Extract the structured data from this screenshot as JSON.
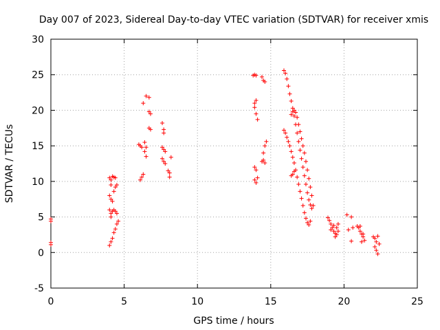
{
  "chart_data": {
    "type": "scatter",
    "title": "Day 007 of 2023, Sidereal Day-to-day VTEC variation (SDTVAR) for receiver xmis",
    "xlabel": "GPS time / hours",
    "ylabel": "SDTVAR / TECUs",
    "xlim": [
      0,
      25
    ],
    "ylim": [
      -5,
      30
    ],
    "xticks": [
      0,
      5,
      10,
      15,
      20,
      25
    ],
    "yticks": [
      -5,
      0,
      5,
      10,
      15,
      20,
      25,
      30
    ],
    "grid": true,
    "marker": "+",
    "color": "#ff0000",
    "series": [
      {
        "name": "SDTVAR",
        "points": [
          [
            0.0,
            4.7
          ],
          [
            0.0,
            4.4
          ],
          [
            0.0,
            1.4
          ],
          [
            0.0,
            1.1
          ],
          [
            4.0,
            10.5
          ],
          [
            4.1,
            10.2
          ],
          [
            4.1,
            9.5
          ],
          [
            4.2,
            10.7
          ],
          [
            4.3,
            10.6
          ],
          [
            4.4,
            10.5
          ],
          [
            4.0,
            8.0
          ],
          [
            4.1,
            7.5
          ],
          [
            4.2,
            7.2
          ],
          [
            4.3,
            8.6
          ],
          [
            4.4,
            9.2
          ],
          [
            4.5,
            9.5
          ],
          [
            4.0,
            6.0
          ],
          [
            4.1,
            5.5
          ],
          [
            4.1,
            5.0
          ],
          [
            4.2,
            5.8
          ],
          [
            4.3,
            6.0
          ],
          [
            4.4,
            5.8
          ],
          [
            4.5,
            5.5
          ],
          [
            4.0,
            1.0
          ],
          [
            4.1,
            1.5
          ],
          [
            4.2,
            2.0
          ],
          [
            4.3,
            2.8
          ],
          [
            4.4,
            3.3
          ],
          [
            4.5,
            4.0
          ],
          [
            4.6,
            4.4
          ],
          [
            6.0,
            15.2
          ],
          [
            6.1,
            15.0
          ],
          [
            6.2,
            14.8
          ],
          [
            6.4,
            15.5
          ],
          [
            6.5,
            14.8
          ],
          [
            6.1,
            10.2
          ],
          [
            6.2,
            10.6
          ],
          [
            6.3,
            11.0
          ],
          [
            6.3,
            21.0
          ],
          [
            6.5,
            22.0
          ],
          [
            6.7,
            21.8
          ],
          [
            6.7,
            19.8
          ],
          [
            6.8,
            19.5
          ],
          [
            6.7,
            17.5
          ],
          [
            6.8,
            17.3
          ],
          [
            6.5,
            13.5
          ],
          [
            6.4,
            14.2
          ],
          [
            7.6,
            18.2
          ],
          [
            7.7,
            17.3
          ],
          [
            7.7,
            16.8
          ],
          [
            7.6,
            14.8
          ],
          [
            7.7,
            14.5
          ],
          [
            7.8,
            14.2
          ],
          [
            7.6,
            13.2
          ],
          [
            7.7,
            12.8
          ],
          [
            7.8,
            12.5
          ],
          [
            8.0,
            11.5
          ],
          [
            8.1,
            11.2
          ],
          [
            8.1,
            10.6
          ],
          [
            8.2,
            13.4
          ],
          [
            13.8,
            24.9
          ],
          [
            13.9,
            25.0
          ],
          [
            14.0,
            24.9
          ],
          [
            14.4,
            24.7
          ],
          [
            14.5,
            24.2
          ],
          [
            14.6,
            24.0
          ],
          [
            13.9,
            21.0
          ],
          [
            14.0,
            21.4
          ],
          [
            13.9,
            20.4
          ],
          [
            14.0,
            19.5
          ],
          [
            14.1,
            18.7
          ],
          [
            13.9,
            12.0
          ],
          [
            14.0,
            11.6
          ],
          [
            13.9,
            10.2
          ],
          [
            14.0,
            9.8
          ],
          [
            14.1,
            10.5
          ],
          [
            14.4,
            12.8
          ],
          [
            14.5,
            13.0
          ],
          [
            14.6,
            12.6
          ],
          [
            14.5,
            14.0
          ],
          [
            14.6,
            15.0
          ],
          [
            14.7,
            15.6
          ],
          [
            15.9,
            25.6
          ],
          [
            16.0,
            25.2
          ],
          [
            16.1,
            24.4
          ],
          [
            16.2,
            23.4
          ],
          [
            16.3,
            22.3
          ],
          [
            16.4,
            21.3
          ],
          [
            16.5,
            20.3
          ],
          [
            16.6,
            19.2
          ],
          [
            16.7,
            18.0
          ],
          [
            16.8,
            16.8
          ],
          [
            16.9,
            15.6
          ],
          [
            17.0,
            14.4
          ],
          [
            17.1,
            13.2
          ],
          [
            17.2,
            12.0
          ],
          [
            17.3,
            10.8
          ],
          [
            17.4,
            9.6
          ],
          [
            17.5,
            8.4
          ],
          [
            17.6,
            7.4
          ],
          [
            17.7,
            6.7
          ],
          [
            17.8,
            6.2
          ],
          [
            15.9,
            17.2
          ],
          [
            16.0,
            16.8
          ],
          [
            16.1,
            16.2
          ],
          [
            16.2,
            15.6
          ],
          [
            16.3,
            15.0
          ],
          [
            16.4,
            14.2
          ],
          [
            16.5,
            13.4
          ],
          [
            16.6,
            12.6
          ],
          [
            16.7,
            11.6
          ],
          [
            16.8,
            10.6
          ],
          [
            16.9,
            9.6
          ],
          [
            17.0,
            8.6
          ],
          [
            17.1,
            7.6
          ],
          [
            17.2,
            6.6
          ],
          [
            17.3,
            5.6
          ],
          [
            17.4,
            4.8
          ],
          [
            17.5,
            4.2
          ],
          [
            17.6,
            3.9
          ],
          [
            17.7,
            4.4
          ],
          [
            16.4,
            19.4
          ],
          [
            16.5,
            19.8
          ],
          [
            16.6,
            20.0
          ],
          [
            16.7,
            19.7
          ],
          [
            16.8,
            19.0
          ],
          [
            16.9,
            18.0
          ],
          [
            17.0,
            17.0
          ],
          [
            17.1,
            16.0
          ],
          [
            17.2,
            15.0
          ],
          [
            17.3,
            14.0
          ],
          [
            17.4,
            12.8
          ],
          [
            17.5,
            11.6
          ],
          [
            17.6,
            10.4
          ],
          [
            17.7,
            9.2
          ],
          [
            17.8,
            8.0
          ],
          [
            17.9,
            6.6
          ],
          [
            16.4,
            10.8
          ],
          [
            16.5,
            11.0
          ],
          [
            16.6,
            11.4
          ],
          [
            18.9,
            4.9
          ],
          [
            19.0,
            4.5
          ],
          [
            19.1,
            4.0
          ],
          [
            19.2,
            3.5
          ],
          [
            19.3,
            3.0
          ],
          [
            19.4,
            2.7
          ],
          [
            19.5,
            2.5
          ],
          [
            19.1,
            3.2
          ],
          [
            19.3,
            3.8
          ],
          [
            19.5,
            3.5
          ],
          [
            19.6,
            4.0
          ],
          [
            19.4,
            2.2
          ],
          [
            19.6,
            3.0
          ],
          [
            20.2,
            5.3
          ],
          [
            20.5,
            5.0
          ],
          [
            20.3,
            3.2
          ],
          [
            20.5,
            1.6
          ],
          [
            20.6,
            3.5
          ],
          [
            20.9,
            3.7
          ],
          [
            21.0,
            3.5
          ],
          [
            21.1,
            3.0
          ],
          [
            21.2,
            2.6
          ],
          [
            21.3,
            2.2
          ],
          [
            21.4,
            1.7
          ],
          [
            21.1,
            3.7
          ],
          [
            21.3,
            2.6
          ],
          [
            21.2,
            1.5
          ],
          [
            22.0,
            2.2
          ],
          [
            22.1,
            2.0
          ],
          [
            22.2,
            1.5
          ],
          [
            22.3,
            2.3
          ],
          [
            22.1,
            0.8
          ],
          [
            22.2,
            0.3
          ],
          [
            22.3,
            -0.2
          ],
          [
            22.4,
            1.2
          ]
        ]
      }
    ]
  }
}
